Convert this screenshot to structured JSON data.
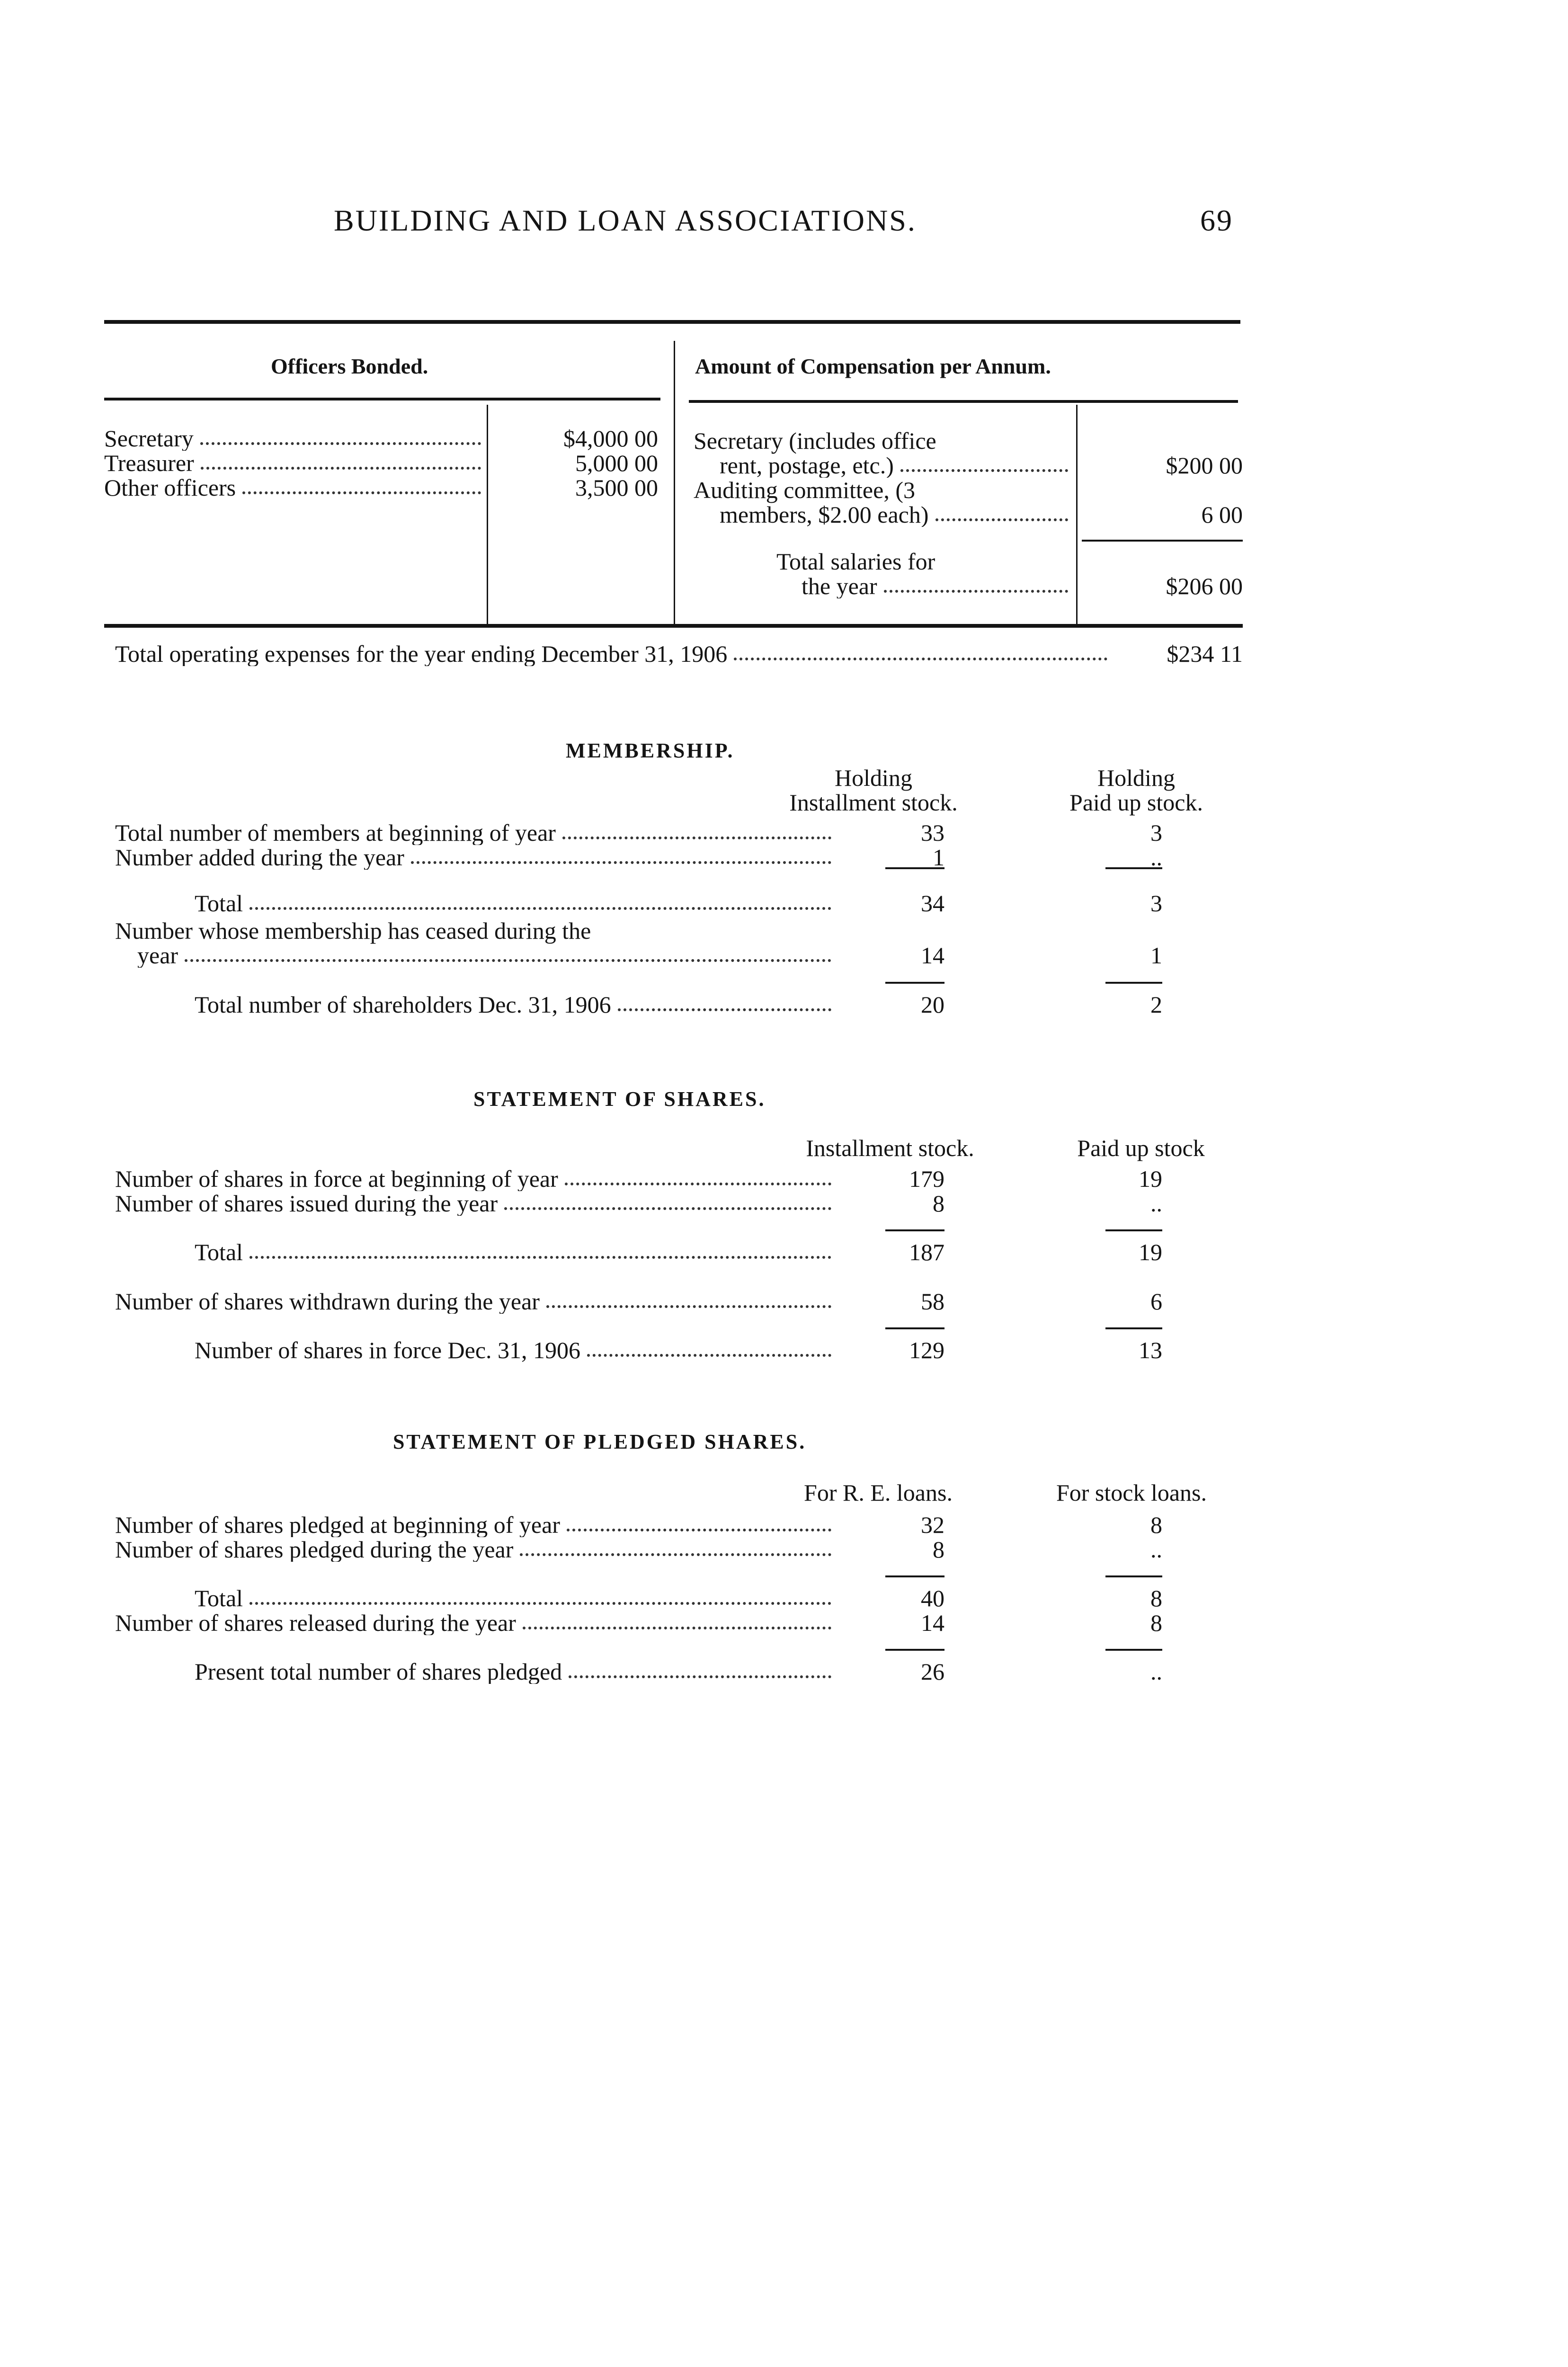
{
  "page": {
    "running_head": "BUILDING AND LOAN ASSOCIATIONS.",
    "page_number": "69"
  },
  "officers_table": {
    "header_left": "Officers Bonded.",
    "header_right": "Amount of Compensation per Annum.",
    "bonded": [
      {
        "officer": "Secretary",
        "amount": "$4,000 00"
      },
      {
        "officer": "Treasurer",
        "amount": "5,000 00"
      },
      {
        "officer": "Other officers",
        "amount": "3,500 00"
      }
    ],
    "compensation": [
      {
        "line1": "Secretary (includes office",
        "line2": "rent, postage, etc.)",
        "amount": "$200 00"
      },
      {
        "line1": "Auditing committee, (3",
        "line2": "members, $2.00 each)",
        "amount": "6 00"
      }
    ],
    "total_line1": "Total salaries for",
    "total_line2": "the year",
    "total_amount": "$206 00"
  },
  "operating_expenses": {
    "label": "Total operating expenses for the year ending December 31, 1906",
    "amount": "$234 11"
  },
  "sections": [
    {
      "title": "MEMBERSHIP.",
      "col_heads": [
        [
          "Holding",
          "Installment stock."
        ],
        [
          "Holding",
          "Paid up stock."
        ]
      ],
      "rows": [
        {
          "label": "Total number of members at beginning of year",
          "values": [
            "33",
            "3"
          ]
        },
        {
          "label": "Number added during the year",
          "values": [
            "1",
            ".."
          ]
        },
        {
          "label": "Total",
          "values": [
            "34",
            "3"
          ]
        },
        {
          "label": "Number whose membership has ceased during the",
          "label2": "year",
          "values": [
            "14",
            "1"
          ]
        },
        {
          "label": "Total number of shareholders Dec. 31, 1906",
          "values": [
            "20",
            "2"
          ]
        }
      ]
    },
    {
      "title": "STATEMENT OF SHARES.",
      "col_heads": [
        [
          "",
          "Installment stock."
        ],
        [
          "",
          "Paid up stock"
        ]
      ],
      "rows": [
        {
          "label": "Number of shares in force at beginning of year",
          "values": [
            "179",
            "19"
          ]
        },
        {
          "label": "Number of shares issued during the year",
          "values": [
            "8",
            ".."
          ]
        },
        {
          "label": "Total",
          "values": [
            "187",
            "19"
          ]
        },
        {
          "label": "Number of shares withdrawn during the year",
          "values": [
            "58",
            "6"
          ]
        },
        {
          "label": "Number of shares in force Dec. 31, 1906",
          "values": [
            "129",
            "13"
          ]
        }
      ]
    },
    {
      "title": "STATEMENT OF PLEDGED SHARES.",
      "col_heads": [
        [
          "",
          "For R. E. loans."
        ],
        [
          "",
          "For stock loans."
        ]
      ],
      "rows": [
        {
          "label": "Number of shares pledged at beginning of year",
          "values": [
            "32",
            "8"
          ]
        },
        {
          "label": "Number of shares pledged during the year",
          "values": [
            "8",
            ".."
          ]
        },
        {
          "label": "Total",
          "values": [
            "40",
            "8"
          ]
        },
        {
          "label": "Number of shares released during the year",
          "values": [
            "14",
            "8"
          ]
        },
        {
          "label": "Present total number of shares pledged",
          "values": [
            "26",
            ".."
          ]
        }
      ]
    }
  ]
}
